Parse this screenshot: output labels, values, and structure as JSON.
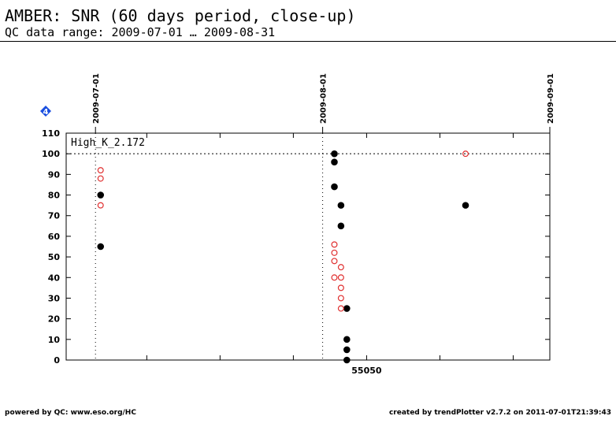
{
  "header": {
    "title": "AMBER: SNR (60 days period, close-up)",
    "subtitle": "QC data range: 2009-07-01 … 2009-08-31"
  },
  "footer": {
    "left": "powered by QC: www.eso.org/HC",
    "right": "created by trendPlotter v2.7.2 on 2011-07-01T21:39:43"
  },
  "badge": {
    "label": "4",
    "color": "#1a4fe0"
  },
  "chart_data": {
    "type": "scatter",
    "panel_label": "High_K_2.172",
    "x_unit": "MJD",
    "xlim": [
      55009,
      55075
    ],
    "ylim": [
      0,
      110
    ],
    "y_ticks": [
      0,
      10,
      20,
      30,
      40,
      50,
      60,
      70,
      80,
      90,
      100,
      110
    ],
    "x_tick_labels": [
      {
        "x": 55050,
        "label": "55050"
      }
    ],
    "x_minor_ticks": [
      55020,
      55030,
      55040,
      55050,
      55060,
      55070
    ],
    "date_markers": [
      {
        "x": 55013,
        "label": "2009-07-01"
      },
      {
        "x": 55044,
        "label": "2009-08-01"
      },
      {
        "x": 55075,
        "label": "2009-09-01"
      }
    ],
    "reference_line": {
      "y": 100,
      "style": "dotted"
    },
    "series": [
      {
        "marker": "filled-black-circle",
        "color": "#000000",
        "points": [
          [
            55013.7,
            80
          ],
          [
            55013.7,
            55
          ],
          [
            55045.6,
            100
          ],
          [
            55045.6,
            96
          ],
          [
            55045.6,
            84
          ],
          [
            55046.5,
            75
          ],
          [
            55046.5,
            65
          ],
          [
            55047.3,
            25
          ],
          [
            55047.3,
            10
          ],
          [
            55047.3,
            5
          ],
          [
            55047.3,
            0
          ],
          [
            55063.5,
            75
          ]
        ]
      },
      {
        "marker": "open-red-circle",
        "color": "#e03030",
        "points": [
          [
            55013.7,
            92
          ],
          [
            55013.7,
            88
          ],
          [
            55013.7,
            75
          ],
          [
            55045.6,
            56
          ],
          [
            55045.6,
            52
          ],
          [
            55045.6,
            48
          ],
          [
            55045.6,
            40
          ],
          [
            55046.5,
            45
          ],
          [
            55046.5,
            40
          ],
          [
            55046.5,
            35
          ],
          [
            55046.5,
            30
          ],
          [
            55046.5,
            25
          ],
          [
            55063.5,
            100
          ]
        ]
      }
    ]
  }
}
